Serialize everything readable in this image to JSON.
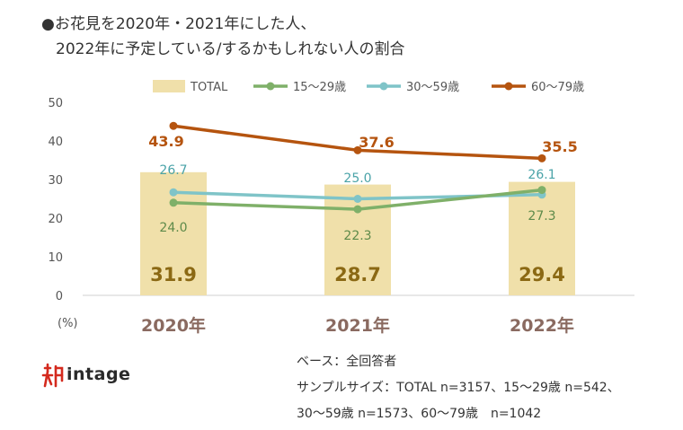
{
  "title_line1": "●お花見を2020年・2021年にした人、",
  "title_line2": "2022年に予定している/するかもしれない人の割合",
  "unit_label": "(%)",
  "notes": {
    "base": "ベース：全回答者",
    "sample_line1": "サンプルサイズ：TOTAL n=3157、15～29歳 n=542、",
    "sample_line2": "30～59歳 n=1573、60～79歳　n=1042"
  },
  "logo_text": "intage",
  "colors": {
    "total_bar": "#f0e0aa",
    "total_label": "#8b6914",
    "age_15_29": "#7fb069",
    "age_30_59": "#7fc4c8",
    "age_60_79": "#b5540f",
    "year_label": "#8a6a60",
    "axis": "#555555",
    "logo_red": "#d42a1e"
  },
  "chart_data": {
    "type": "bar",
    "categories": [
      "2020年",
      "2021年",
      "2022年"
    ],
    "ylim": [
      0,
      50
    ],
    "yticks": [
      0,
      10,
      20,
      30,
      40,
      50
    ],
    "grid": false,
    "legend_position": "top",
    "series": [
      {
        "name": "TOTAL",
        "kind": "bar",
        "values": [
          31.9,
          28.7,
          29.4
        ],
        "labels": [
          "31.9",
          "28.7",
          "29.4"
        ]
      },
      {
        "name": "15～29歳",
        "kind": "line",
        "values": [
          24.0,
          22.3,
          27.3
        ],
        "labels": [
          "24.0",
          "22.3",
          "27.3"
        ]
      },
      {
        "name": "30～59歳",
        "kind": "line",
        "values": [
          26.7,
          25.0,
          26.1
        ],
        "labels": [
          "26.7",
          "25.0",
          "26.1"
        ]
      },
      {
        "name": "60～79歳",
        "kind": "line",
        "values": [
          43.9,
          37.6,
          35.5
        ],
        "labels": [
          "43.9",
          "37.6",
          "35.5"
        ]
      }
    ]
  }
}
